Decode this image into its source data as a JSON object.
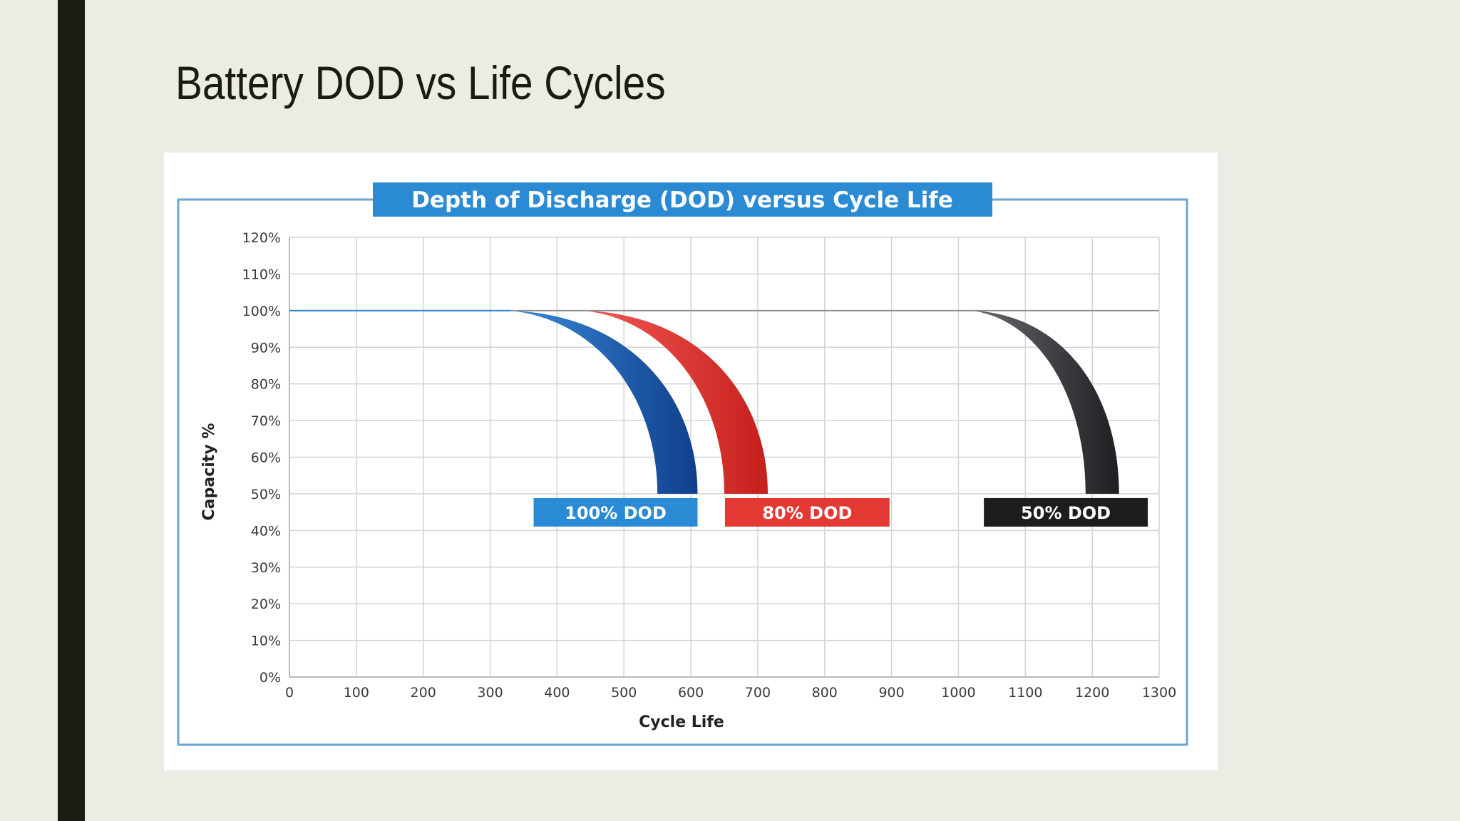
{
  "slide": {
    "title": "Battery DOD vs Life Cycles",
    "accent_bar_color": "#1c1b12",
    "background_color": "#edece4"
  },
  "chart_data": {
    "type": "area",
    "title": "Depth of Discharge (DOD) versus Cycle Life",
    "xlabel": "Cycle Life",
    "ylabel": "Capacity %",
    "xlim": [
      0,
      1300
    ],
    "ylim": [
      0,
      120
    ],
    "xticks": [
      0,
      100,
      200,
      300,
      400,
      500,
      600,
      700,
      800,
      900,
      1000,
      1100,
      1200,
      1300
    ],
    "yticks": [
      "0%",
      "10%",
      "20%",
      "30%",
      "40%",
      "50%",
      "60%",
      "70%",
      "80%",
      "90%",
      "100%",
      "110%",
      "120%"
    ],
    "grid": true,
    "baseline_capacity": 100,
    "series": [
      {
        "name": "100% DOD",
        "color": "#1f5fb0",
        "label_color": "#2b8ad4",
        "start_cycles": 330,
        "end_cycles_inner": 550,
        "end_cycles_outer": 610,
        "end_capacity": 50,
        "label_x_range": [
          365,
          610
        ]
      },
      {
        "name": "80% DOD",
        "color": "#e0322e",
        "label_color": "#e43833",
        "start_cycles": 440,
        "end_cycles_inner": 650,
        "end_cycles_outer": 715,
        "end_capacity": 50,
        "label_x_range": [
          651,
          897
        ]
      },
      {
        "name": "50% DOD",
        "color": "#3c3c3f",
        "label_color": "#1d1d1f",
        "start_cycles": 1020,
        "end_cycles_inner": 1190,
        "end_cycles_outer": 1240,
        "end_capacity": 50,
        "label_x_range": [
          1038,
          1283
        ]
      }
    ],
    "title_bg_color": "#2b8ad4",
    "frame_color": "#6aa6d6"
  }
}
